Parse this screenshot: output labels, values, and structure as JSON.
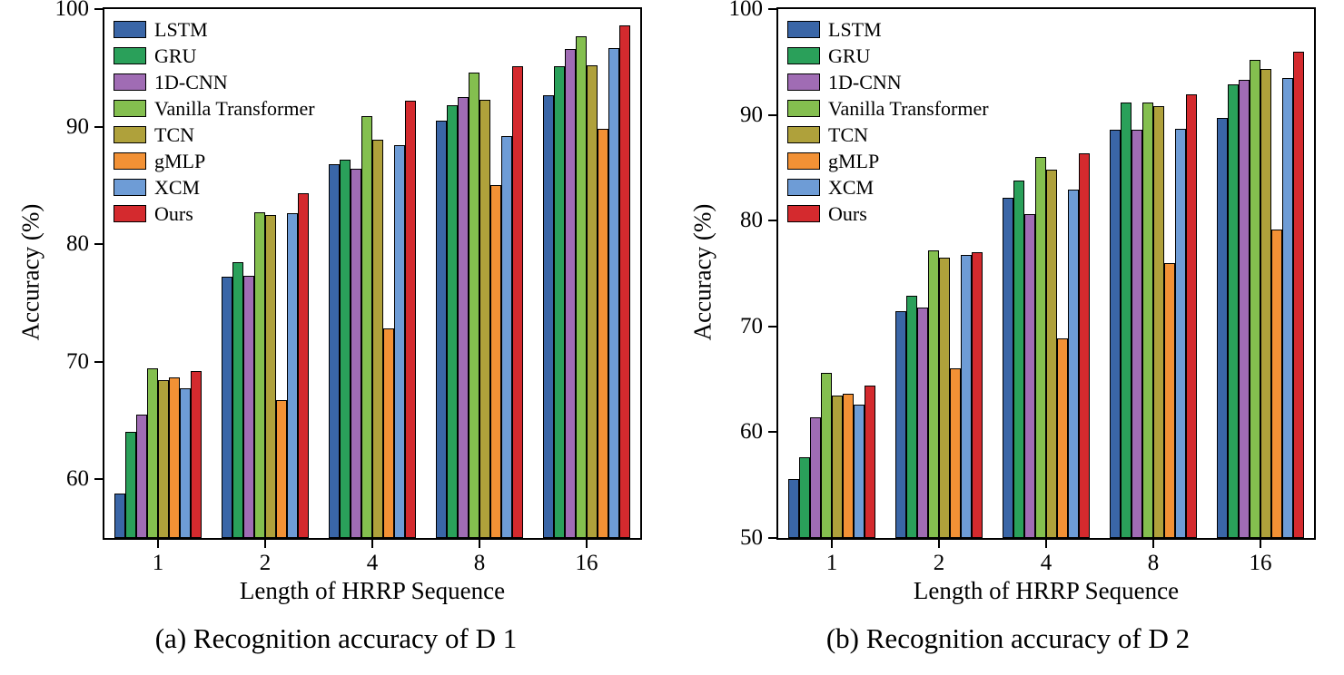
{
  "figure": {
    "background": "#ffffff"
  },
  "chart_data": [
    {
      "type": "bar",
      "caption": "(a) Recognition accuracy of D 1",
      "xlabel": "Length of HRRP Sequence",
      "ylabel": "Accuracy (%)",
      "categories": [
        "1",
        "2",
        "4",
        "8",
        "16"
      ],
      "ylim": [
        55,
        100
      ],
      "yticks": [
        60,
        70,
        80,
        90,
        100
      ],
      "legend_position": "top-left",
      "grid": false,
      "series": [
        {
          "name": "LSTM",
          "color": "#3A66A7",
          "values": [
            58.8,
            77.2,
            86.8,
            90.5,
            92.7
          ]
        },
        {
          "name": "GRU",
          "color": "#2AA05A",
          "values": [
            64.0,
            78.5,
            87.2,
            91.8,
            95.1
          ]
        },
        {
          "name": "1D-CNN",
          "color": "#A06CB4",
          "values": [
            65.5,
            77.3,
            86.4,
            92.5,
            96.6
          ]
        },
        {
          "name": "Vanilla Transformer",
          "color": "#84BF4F",
          "values": [
            69.4,
            82.7,
            90.9,
            94.6,
            97.7
          ]
        },
        {
          "name": "TCN",
          "color": "#AFA13B",
          "values": [
            68.4,
            82.5,
            88.9,
            92.3,
            95.2
          ]
        },
        {
          "name": "gMLP",
          "color": "#F29135",
          "values": [
            68.7,
            66.7,
            72.8,
            85.0,
            89.8
          ]
        },
        {
          "name": "XCM",
          "color": "#6E9CD6",
          "values": [
            67.7,
            82.6,
            88.4,
            89.2,
            96.7
          ]
        },
        {
          "name": "Ours",
          "color": "#D42A2E",
          "values": [
            69.2,
            84.3,
            92.2,
            95.1,
            98.6
          ]
        }
      ]
    },
    {
      "type": "bar",
      "caption": "(b) Recognition accuracy of D 2",
      "xlabel": "Length of HRRP Sequence",
      "ylabel": "Accuracy (%)",
      "categories": [
        "1",
        "2",
        "4",
        "8",
        "16"
      ],
      "ylim": [
        50,
        100
      ],
      "yticks": [
        50,
        60,
        70,
        80,
        90,
        100
      ],
      "legend_position": "top-left",
      "grid": false,
      "series": [
        {
          "name": "LSTM",
          "color": "#3A66A7",
          "values": [
            55.6,
            71.4,
            82.2,
            88.6,
            89.7
          ]
        },
        {
          "name": "GRU",
          "color": "#2AA05A",
          "values": [
            57.6,
            72.9,
            83.8,
            91.2,
            92.9
          ]
        },
        {
          "name": "1D-CNN",
          "color": "#A06CB4",
          "values": [
            61.4,
            71.8,
            80.6,
            88.6,
            93.3
          ]
        },
        {
          "name": "Vanilla Transformer",
          "color": "#84BF4F",
          "values": [
            65.6,
            77.2,
            86.0,
            91.2,
            95.2
          ]
        },
        {
          "name": "TCN",
          "color": "#AFA13B",
          "values": [
            63.5,
            76.5,
            84.8,
            90.8,
            94.3
          ]
        },
        {
          "name": "gMLP",
          "color": "#F29135",
          "values": [
            63.6,
            66.0,
            68.9,
            76.0,
            79.2
          ]
        },
        {
          "name": "XCM",
          "color": "#6E9CD6",
          "values": [
            62.6,
            76.8,
            82.9,
            88.7,
            93.5
          ]
        },
        {
          "name": "Ours",
          "color": "#D42A2E",
          "values": [
            64.4,
            77.0,
            86.4,
            91.9,
            96.0
          ]
        }
      ]
    }
  ]
}
